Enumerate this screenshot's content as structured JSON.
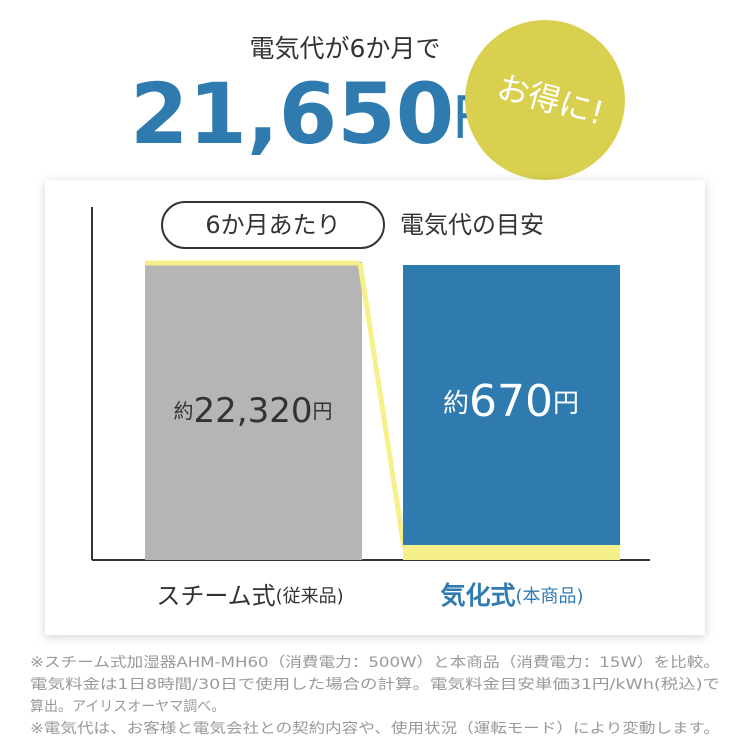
{
  "headline": {
    "line1": "電気代が6か月で",
    "amount": "21,650",
    "unit": "円"
  },
  "badge": "お得に!",
  "chart": {
    "period": "6か月あたり",
    "caption": "電気代の目安",
    "bars": [
      {
        "prefix": "約",
        "value": "22,320",
        "unit": "円",
        "label": "スチーム式",
        "note": "(従来品)"
      },
      {
        "prefix": "約",
        "value": "670",
        "unit": "円",
        "label": "気化式",
        "note": "(本商品)"
      }
    ]
  },
  "footnotes": [
    "※スチーム式加湿器AHM-MH60（消費電力：500W）と本商品（消費電力：15W）を比較。",
    "電気料金は1日8時間/30日で使用した場合の計算。電気料金目安単価31円/kWh(税込)で",
    "算出。アイリスオーヤマ調べ。",
    "※電気代は、お客様と電気会社との契約内容や、使用状況（運転モード）により変動します。"
  ]
}
